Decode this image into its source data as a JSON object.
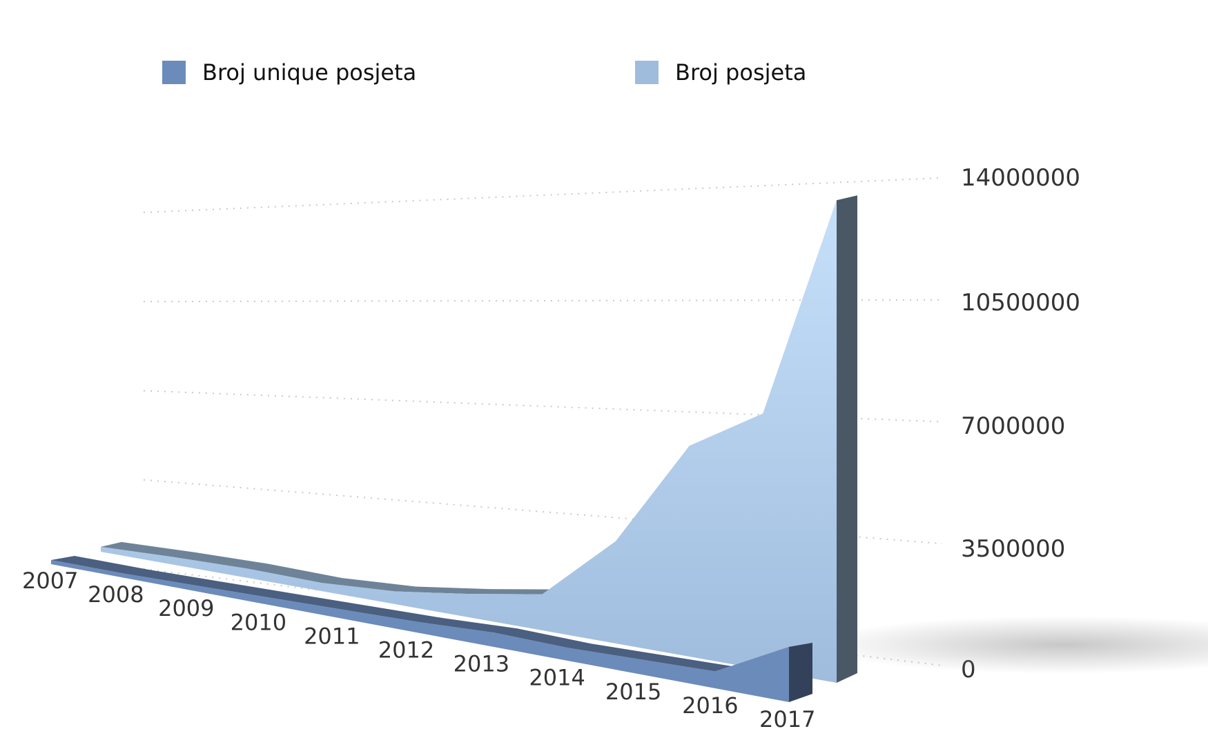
{
  "legend": {
    "unique_label": "Broj unique posjeta",
    "visits_label": "Broj posjeta"
  },
  "colors": {
    "unique": "#6b8bba",
    "unique_dark": "#33425a",
    "visits": "#9fbcdd",
    "visits_light": "#c6e0fa",
    "visits_dark": "#4a5866",
    "grid": "#c8c8c8",
    "text": "#333333"
  },
  "chart_data": {
    "type": "area",
    "categories": [
      "2007",
      "2008",
      "2009",
      "2010",
      "2011",
      "2012",
      "2013",
      "2014",
      "2015",
      "2016",
      "2017"
    ],
    "series": [
      {
        "name": "Broj unique posjeta",
        "values": [
          150000,
          150000,
          200000,
          250000,
          300000,
          350000,
          450000,
          400000,
          450000,
          500000,
          1600000
        ]
      },
      {
        "name": "Broj posjeta",
        "values": [
          200000,
          300000,
          350000,
          300000,
          450000,
          800000,
          1200000,
          3300000,
          6600000,
          7800000,
          14300000
        ]
      }
    ],
    "yticks": [
      "0",
      "3500000",
      "7000000",
      "10500000",
      "14000000"
    ],
    "ylim": [
      0,
      14000000
    ],
    "grid": true,
    "legend_position": "top"
  }
}
